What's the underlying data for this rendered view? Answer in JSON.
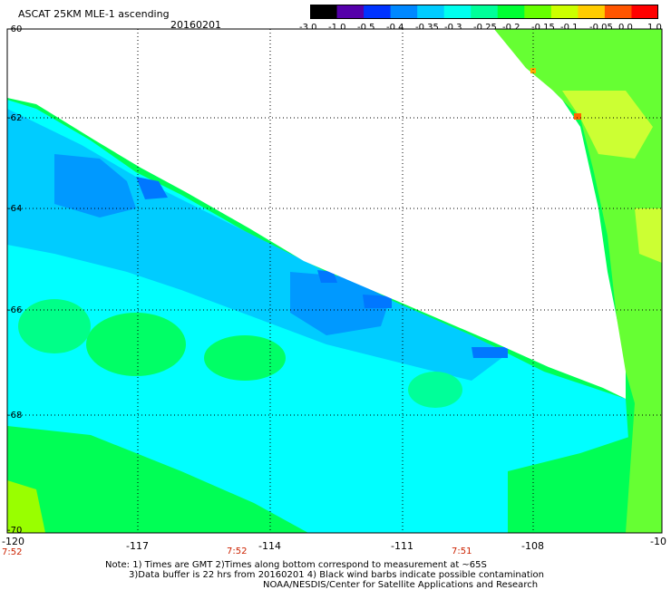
{
  "header": {
    "title": "ASCAT 25KM MLE-1 ascending",
    "date": "20160201"
  },
  "colorbar": {
    "labels": [
      "-3.0",
      "-1.0",
      "-0.5",
      "-0.4",
      "-0.35",
      "-0.3",
      "-0.25",
      "-0.2",
      "-0.15",
      "-0.1",
      "-0.05",
      "0.0",
      "1.0"
    ],
    "colors": [
      "#000000",
      "#5500aa",
      "#0033ff",
      "#0088ff",
      "#00ccff",
      "#00ffee",
      "#00ff99",
      "#00ff33",
      "#66ff00",
      "#ccff00",
      "#ffcc00",
      "#ff5500",
      "#ff0000"
    ]
  },
  "map": {
    "lat_labels": [
      "-60",
      "-62",
      "-64",
      "-66",
      "-68",
      "-70"
    ],
    "lon_labels": [
      "-120",
      "-117",
      "-114",
      "-111",
      "-108",
      "-10"
    ],
    "time_labels": [
      "7:52",
      "7:52",
      "7:51"
    ]
  },
  "footer": {
    "note_line1": "Note: 1) Times are GMT 2)Times along bottom correspond to measurement at ~65S",
    "note_line2": "3)Data buffer is 22 hrs from 20160201 4) Black wind barbs indicate possible contamination",
    "note_line3": "NOAA/NESDIS/Center for Satellite Applications and Research"
  },
  "colors": {
    "cyan": "#00ffff",
    "light_blue": "#00ccff",
    "blue": "#0077ff",
    "green": "#00ff55",
    "yellowgreen": "#88ff00",
    "yellow": "#ddff00",
    "orange": "#ff6600"
  }
}
